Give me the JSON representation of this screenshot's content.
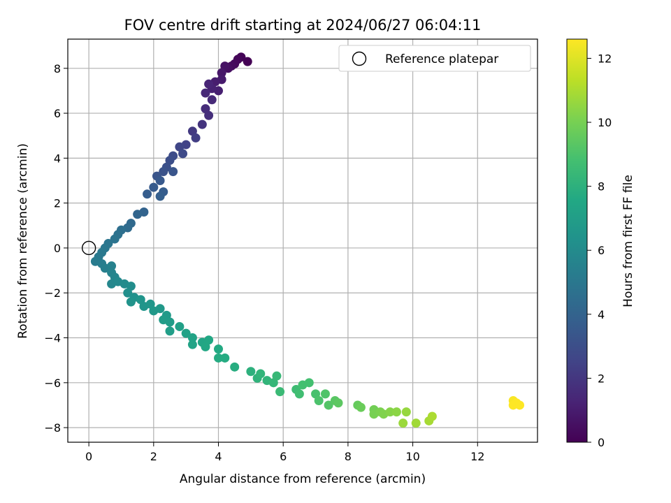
{
  "chart_data": {
    "type": "scatter",
    "title": "FOV centre drift starting at 2024/06/27 06:04:11",
    "xlabel": "Angular distance from reference (arcmin)",
    "ylabel": "Rotation from reference (arcmin)",
    "xlim": [
      -0.65,
      13.85
    ],
    "ylim": [
      -8.65,
      9.3
    ],
    "xticks": [
      0,
      2,
      4,
      6,
      8,
      10,
      12
    ],
    "yticks": [
      -8,
      -6,
      -4,
      -2,
      0,
      2,
      4,
      6,
      8
    ],
    "xtick_labels": [
      "0",
      "2",
      "4",
      "6",
      "8",
      "10",
      "12"
    ],
    "ytick_labels": [
      "−8",
      "−6",
      "−4",
      "−2",
      "0",
      "2",
      "4",
      "6",
      "8"
    ],
    "grid": true,
    "legend": {
      "position": "top-right",
      "entries": [
        "Reference platepar"
      ]
    },
    "reference_point": {
      "name": "Reference platepar",
      "x": 0,
      "y": 0,
      "marker": "hollow-circle"
    },
    "colorbar": {
      "label": "Hours from first FF file",
      "range": [
        0,
        12.6
      ],
      "ticks": [
        0,
        2,
        4,
        6,
        8,
        10,
        12
      ],
      "tick_labels": [
        "0",
        "2",
        "4",
        "6",
        "8",
        "10",
        "12"
      ],
      "colormap": "viridis"
    },
    "series": [
      {
        "columns": [
          "x",
          "y",
          "hours"
        ],
        "points": [
          [
            4.9,
            8.3,
            0.0
          ],
          [
            4.7,
            8.5,
            0.1
          ],
          [
            4.6,
            8.4,
            0.2
          ],
          [
            4.5,
            8.2,
            0.3
          ],
          [
            4.4,
            8.1,
            0.4
          ],
          [
            4.3,
            8.0,
            0.5
          ],
          [
            4.2,
            8.1,
            0.6
          ],
          [
            4.1,
            7.8,
            0.8
          ],
          [
            4.1,
            7.5,
            0.9
          ],
          [
            3.9,
            7.4,
            1.0
          ],
          [
            4.0,
            7.0,
            1.1
          ],
          [
            3.8,
            7.1,
            1.2
          ],
          [
            3.7,
            7.3,
            1.3
          ],
          [
            3.6,
            6.9,
            1.4
          ],
          [
            3.8,
            6.6,
            1.5
          ],
          [
            3.6,
            6.2,
            1.6
          ],
          [
            3.7,
            5.9,
            1.7
          ],
          [
            3.5,
            5.5,
            1.9
          ],
          [
            3.2,
            5.2,
            2.1
          ],
          [
            3.3,
            4.9,
            2.3
          ],
          [
            3.0,
            4.6,
            2.5
          ],
          [
            2.8,
            4.5,
            2.6
          ],
          [
            2.9,
            4.2,
            2.8
          ],
          [
            2.6,
            4.1,
            2.9
          ],
          [
            2.5,
            3.9,
            3.0
          ],
          [
            2.4,
            3.6,
            3.1
          ],
          [
            2.3,
            3.4,
            3.2
          ],
          [
            2.1,
            3.2,
            3.3
          ],
          [
            2.6,
            3.4,
            3.3
          ],
          [
            2.2,
            3.0,
            3.5
          ],
          [
            2.0,
            2.7,
            3.6
          ],
          [
            1.8,
            2.4,
            3.7
          ],
          [
            2.3,
            2.5,
            3.7
          ],
          [
            2.2,
            2.3,
            3.8
          ],
          [
            1.7,
            1.6,
            4.0
          ],
          [
            1.5,
            1.5,
            4.1
          ],
          [
            1.3,
            1.1,
            4.3
          ],
          [
            1.2,
            0.9,
            4.4
          ],
          [
            1.0,
            0.8,
            4.6
          ],
          [
            0.9,
            0.6,
            4.7
          ],
          [
            0.8,
            0.4,
            4.8
          ],
          [
            0.6,
            0.2,
            4.9
          ],
          [
            0.5,
            0.0,
            5.0
          ],
          [
            0.4,
            -0.2,
            5.1
          ],
          [
            0.3,
            -0.4,
            5.1
          ],
          [
            0.2,
            -0.6,
            5.2
          ],
          [
            0.4,
            -0.7,
            5.3
          ],
          [
            0.5,
            -0.9,
            5.4
          ],
          [
            0.7,
            -0.8,
            5.5
          ],
          [
            0.7,
            -1.1,
            5.6
          ],
          [
            0.8,
            -1.3,
            5.7
          ],
          [
            0.7,
            -1.6,
            5.8
          ],
          [
            0.9,
            -1.5,
            5.9
          ],
          [
            1.1,
            -1.6,
            6.0
          ],
          [
            1.3,
            -1.7,
            6.1
          ],
          [
            1.2,
            -2.0,
            6.2
          ],
          [
            1.4,
            -2.2,
            6.3
          ],
          [
            1.3,
            -2.4,
            6.4
          ],
          [
            1.6,
            -2.3,
            6.5
          ],
          [
            1.7,
            -2.6,
            6.5
          ],
          [
            1.9,
            -2.5,
            6.6
          ],
          [
            2.0,
            -2.8,
            6.7
          ],
          [
            2.2,
            -2.7,
            6.7
          ],
          [
            2.4,
            -3.0,
            6.8
          ],
          [
            2.3,
            -3.2,
            6.9
          ],
          [
            2.5,
            -3.3,
            6.9
          ],
          [
            2.5,
            -3.7,
            7.0
          ],
          [
            2.8,
            -3.5,
            7.1
          ],
          [
            3.0,
            -3.8,
            7.2
          ],
          [
            3.2,
            -4.0,
            7.3
          ],
          [
            3.2,
            -4.3,
            7.3
          ],
          [
            3.5,
            -4.2,
            7.4
          ],
          [
            3.6,
            -4.4,
            7.5
          ],
          [
            3.7,
            -4.1,
            7.5
          ],
          [
            4.0,
            -4.5,
            7.6
          ],
          [
            4.0,
            -4.9,
            7.7
          ],
          [
            4.2,
            -4.9,
            7.7
          ],
          [
            4.5,
            -5.3,
            7.8
          ],
          [
            5.0,
            -5.5,
            8.0
          ],
          [
            5.2,
            -5.8,
            8.1
          ],
          [
            5.3,
            -5.6,
            8.2
          ],
          [
            5.5,
            -5.9,
            8.2
          ],
          [
            5.7,
            -6.0,
            8.3
          ],
          [
            5.8,
            -5.7,
            8.4
          ],
          [
            5.9,
            -6.4,
            8.5
          ],
          [
            6.4,
            -6.3,
            8.6
          ],
          [
            6.5,
            -6.5,
            8.7
          ],
          [
            6.6,
            -6.1,
            8.8
          ],
          [
            6.8,
            -6.0,
            8.8
          ],
          [
            7.0,
            -6.5,
            8.9
          ],
          [
            7.1,
            -6.8,
            9.0
          ],
          [
            7.3,
            -6.5,
            9.1
          ],
          [
            7.4,
            -7.0,
            9.2
          ],
          [
            7.6,
            -6.8,
            9.3
          ],
          [
            7.7,
            -6.9,
            9.4
          ],
          [
            8.3,
            -7.0,
            9.6
          ],
          [
            8.4,
            -7.1,
            9.7
          ],
          [
            8.8,
            -7.2,
            9.9
          ],
          [
            8.8,
            -7.4,
            10.0
          ],
          [
            9.0,
            -7.3,
            10.1
          ],
          [
            9.1,
            -7.4,
            10.2
          ],
          [
            9.3,
            -7.3,
            10.3
          ],
          [
            9.5,
            -7.3,
            10.4
          ],
          [
            9.8,
            -7.3,
            10.6
          ],
          [
            9.7,
            -7.8,
            10.7
          ],
          [
            10.1,
            -7.8,
            10.8
          ],
          [
            10.5,
            -7.7,
            10.9
          ],
          [
            10.6,
            -7.5,
            11.0
          ],
          [
            13.1,
            -6.8,
            12.5
          ],
          [
            13.1,
            -7.0,
            12.6
          ],
          [
            13.2,
            -6.9,
            12.6
          ],
          [
            13.3,
            -7.0,
            12.6
          ]
        ]
      }
    ]
  }
}
